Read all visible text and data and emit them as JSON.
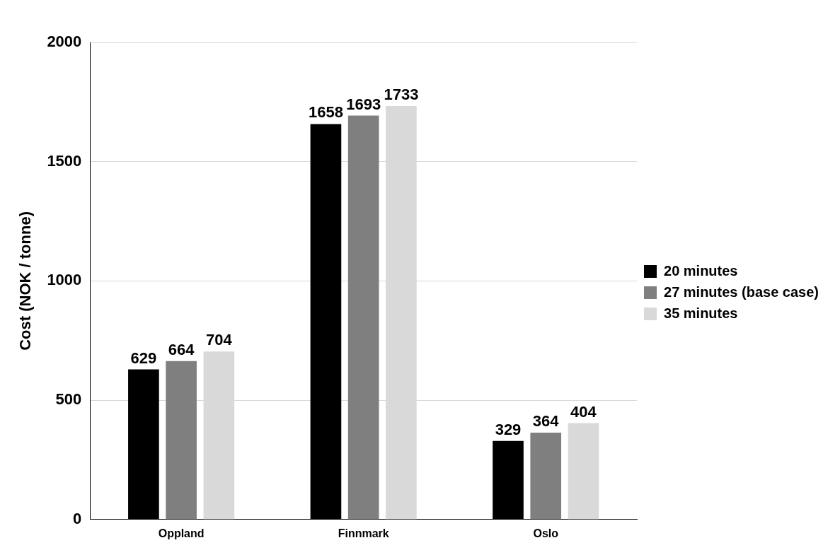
{
  "chart_data": {
    "type": "bar",
    "ylabel": "Cost (NOK / tonne)",
    "categories": [
      "Oppland",
      "Finnmark",
      "Oslo"
    ],
    "series": [
      {
        "name": "20 minutes",
        "color": "#000000",
        "values": [
          629,
          1658,
          329
        ]
      },
      {
        "name": "27 minutes (base case)",
        "color": "#7f7f7f",
        "values": [
          664,
          1693,
          364
        ]
      },
      {
        "name": "35 minutes",
        "color": "#d9d9d9",
        "values": [
          704,
          1733,
          404
        ]
      }
    ],
    "ylim": [
      0,
      2000
    ],
    "yticks": [
      0,
      500,
      1000,
      1500,
      2000
    ],
    "grid": "y",
    "legend": "right",
    "data_labels": true
  }
}
